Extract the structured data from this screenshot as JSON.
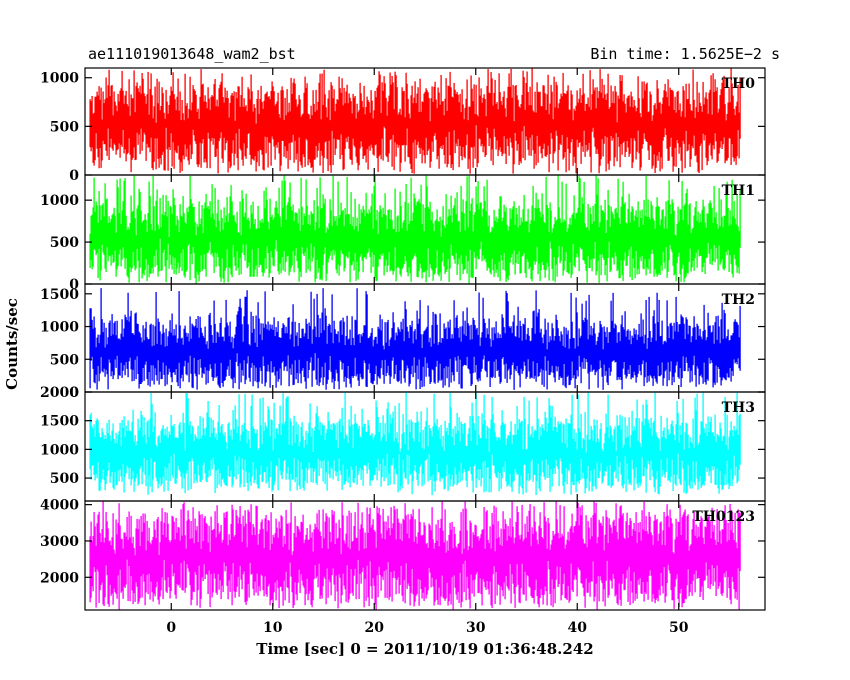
{
  "header": {
    "left_title": "ae111019013648_wam2_bst",
    "right_title": "Bin time: 1.5625E−2 s"
  },
  "chart_data": {
    "type": "line",
    "title": "ae111019013648_wam2_bst",
    "subtitle": "Bin time: 1.5625E−2 s",
    "xlabel": "Time [sec] 0 = 2011/10/19 01:36:48.242",
    "ylabel": "Counts/sec",
    "xlim": [
      -8.5,
      58.5
    ],
    "x_data_range": [
      -8,
      56
    ],
    "xticks": [
      0,
      10,
      20,
      30,
      40,
      50
    ],
    "grid": false,
    "panels": [
      {
        "name": "TH0",
        "color": "#ff0000",
        "ylim": [
          0,
          1100
        ],
        "yticks": [
          0,
          500,
          1000
        ],
        "typical_low": 200,
        "typical_high": 830,
        "min": 10,
        "max": 1100
      },
      {
        "name": "TH1",
        "color": "#00ff00",
        "ylim": [
          0,
          1300
        ],
        "yticks": [
          0,
          500,
          1000
        ],
        "typical_low": 200,
        "typical_high": 880,
        "min": 10,
        "max": 1300
      },
      {
        "name": "TH2",
        "color": "#0000ff",
        "ylim": [
          0,
          1650
        ],
        "yticks": [
          0,
          500,
          1000,
          1500
        ],
        "typical_low": 250,
        "typical_high": 1000,
        "min": 30,
        "max": 1600
      },
      {
        "name": "TH3",
        "color": "#00ffff",
        "ylim": [
          100,
          2000
        ],
        "yticks": [
          500,
          1000,
          1500,
          2000
        ],
        "typical_low": 480,
        "typical_high": 1400,
        "min": 200,
        "max": 2000
      },
      {
        "name": "TH0123",
        "color": "#ff00ff",
        "ylim": [
          1100,
          4100
        ],
        "yticks": [
          2000,
          3000,
          4000
        ],
        "typical_low": 1600,
        "typical_high": 3500,
        "min": 1150,
        "max": 4100
      }
    ]
  }
}
